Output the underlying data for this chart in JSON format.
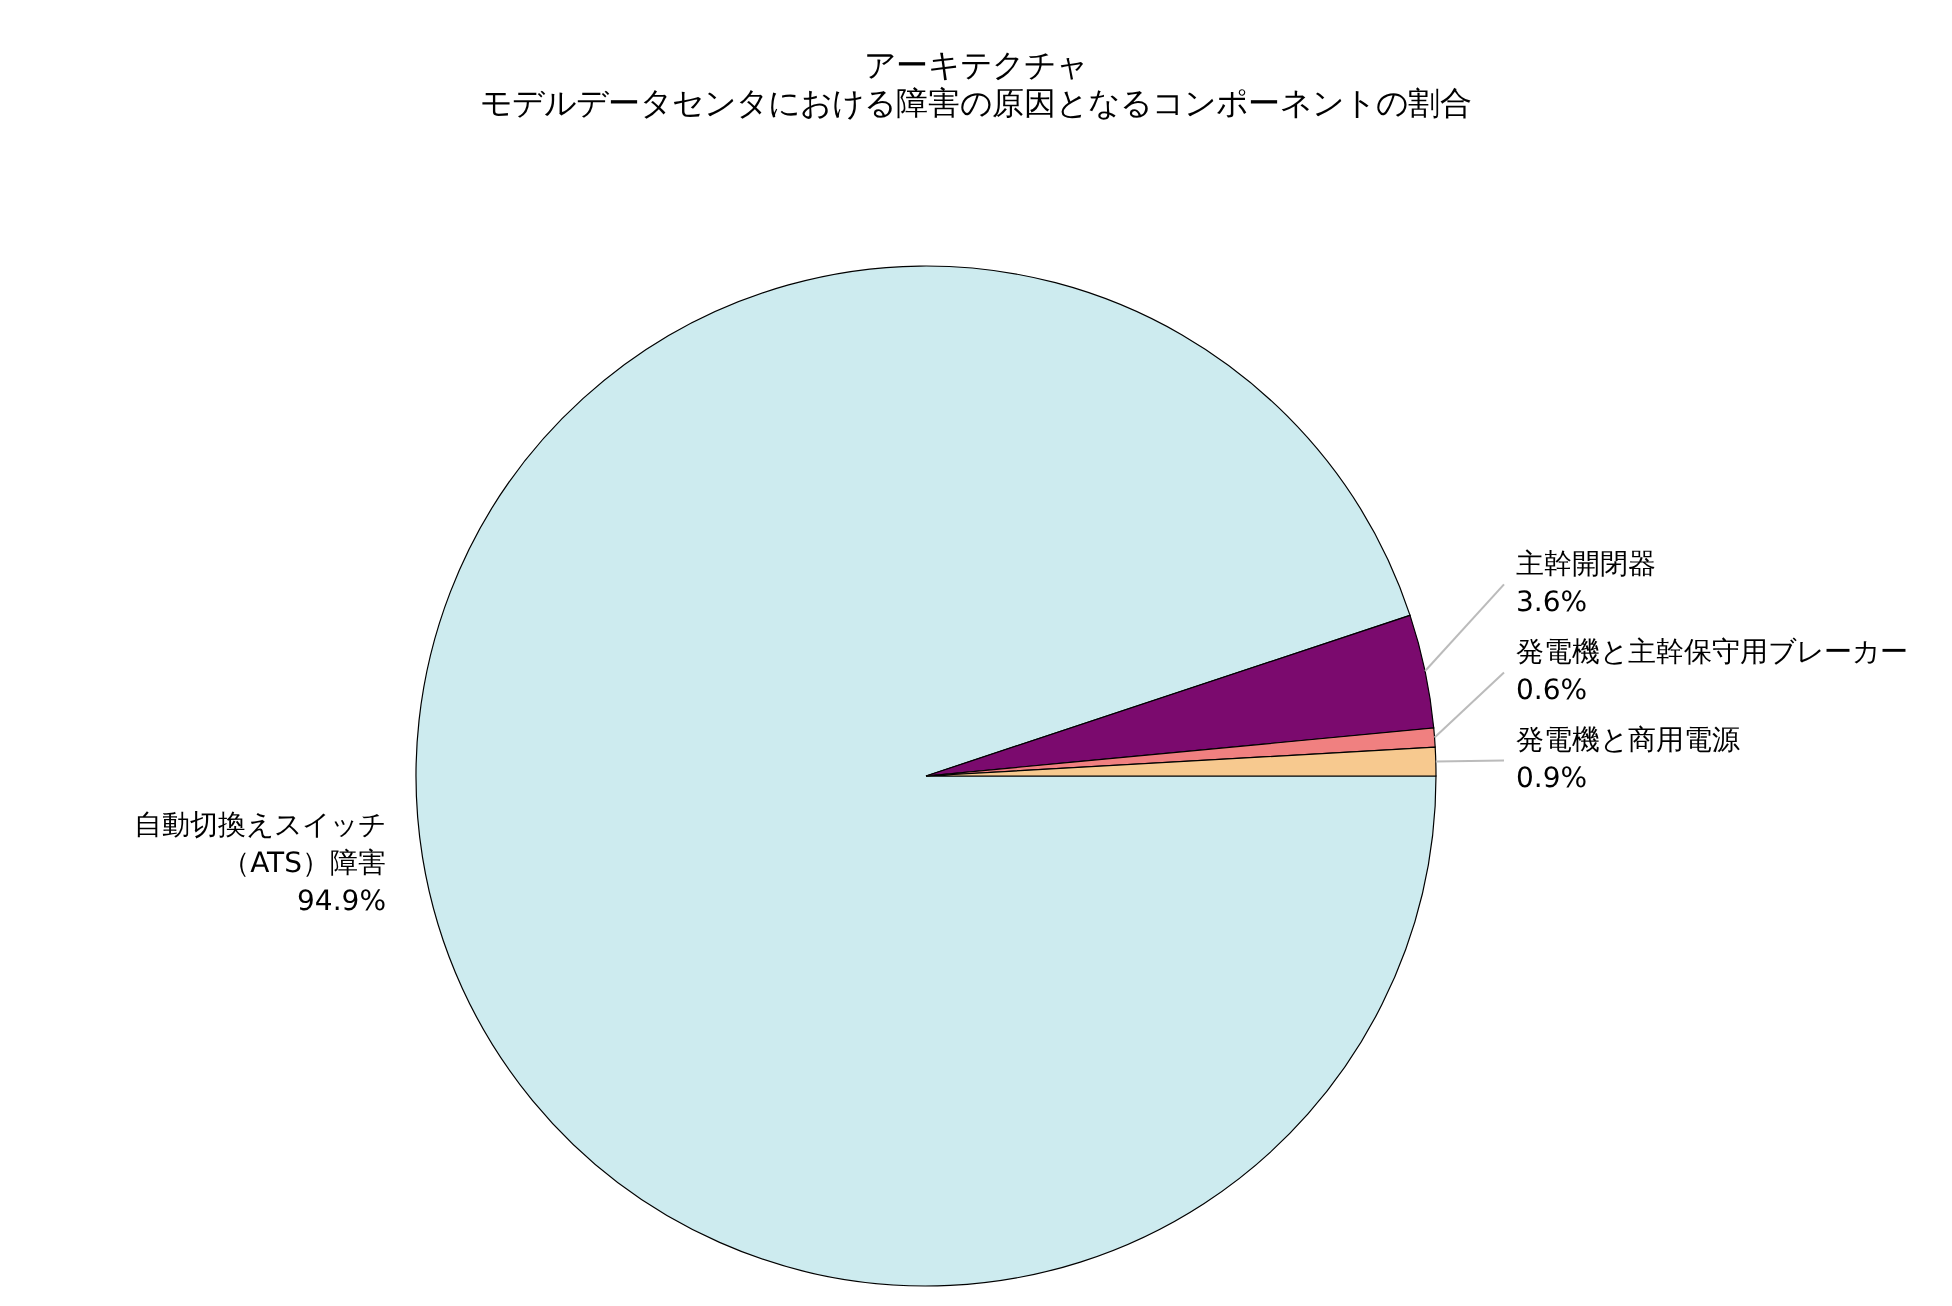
{
  "chart_data": {
    "type": "pie",
    "title": "アーキテクチャ",
    "subtitle": "モデルデータセンタにおける障害の原因となるコンポーネントの割合",
    "categories": [
      "自動切換えスイッチ（ATS）障害",
      "主幹開閉器",
      "発電機と主幹保守用ブレーカー",
      "発電機と商用電源"
    ],
    "values": [
      94.9,
      3.6,
      0.6,
      0.9
    ],
    "value_labels": [
      "94.9%",
      "3.6%",
      "0.6%",
      "0.9%"
    ],
    "colors": [
      "#cdebef",
      "#7b0a6e",
      "#f08080",
      "#f7c98f"
    ],
    "legend": false
  }
}
